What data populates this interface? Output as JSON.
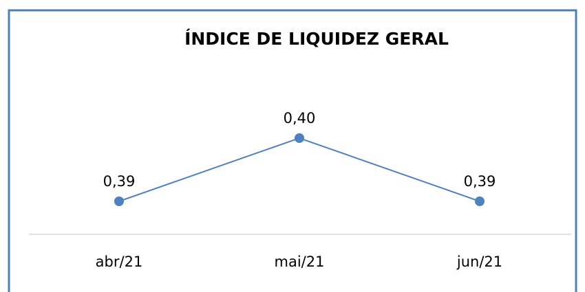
{
  "chart_data": {
    "type": "line",
    "title": "ÍNDICE DE LIQUIDEZ GERAL",
    "categories": [
      "abr/21",
      "mai/21",
      "jun/21"
    ],
    "series": [
      {
        "color": "#4f81bd",
        "values": [
          0.39,
          0.4,
          0.39
        ],
        "value_labels": [
          "0,39",
          "0,40",
          "0,39"
        ]
      }
    ],
    "ylim": [
      0.385,
      0.405
    ]
  }
}
